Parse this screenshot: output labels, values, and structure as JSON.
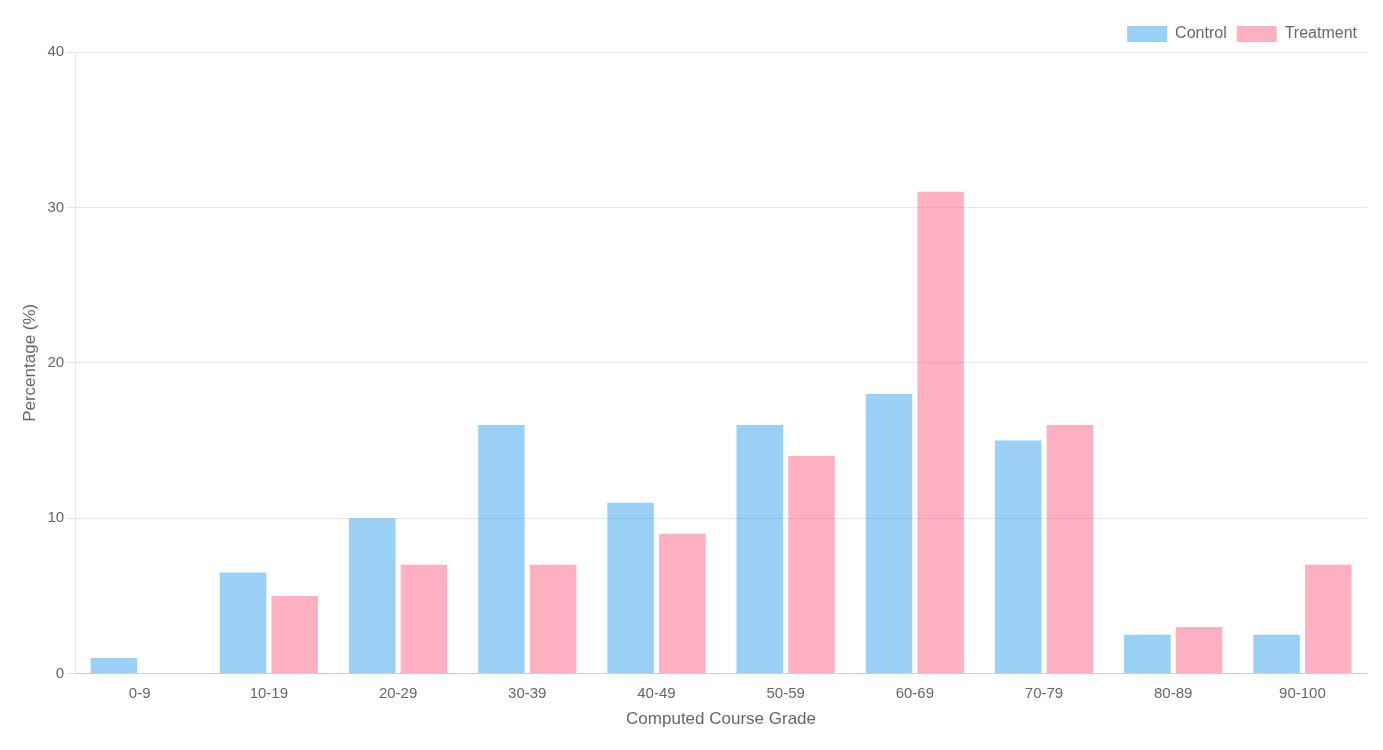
{
  "chart_data": {
    "type": "bar",
    "categories": [
      "0-9",
      "10-19",
      "20-29",
      "30-39",
      "40-49",
      "50-59",
      "60-69",
      "70-79",
      "80-89",
      "90-100"
    ],
    "series": [
      {
        "name": "Control",
        "values": [
          1.0,
          6.5,
          10.0,
          16.0,
          11.0,
          16.0,
          18.0,
          15.0,
          2.5,
          2.5
        ]
      },
      {
        "name": "Treatment",
        "values": [
          0.0,
          5.0,
          7.0,
          7.0,
          9.0,
          14.0,
          31.0,
          16.0,
          3.0,
          7.0
        ]
      }
    ],
    "xlabel": "Computed Course Grade",
    "ylabel": "Percentage (%)",
    "ylim": [
      0,
      40
    ],
    "yticks": [
      0,
      10,
      20,
      30,
      40
    ],
    "grid": true,
    "legend": "upper right"
  }
}
